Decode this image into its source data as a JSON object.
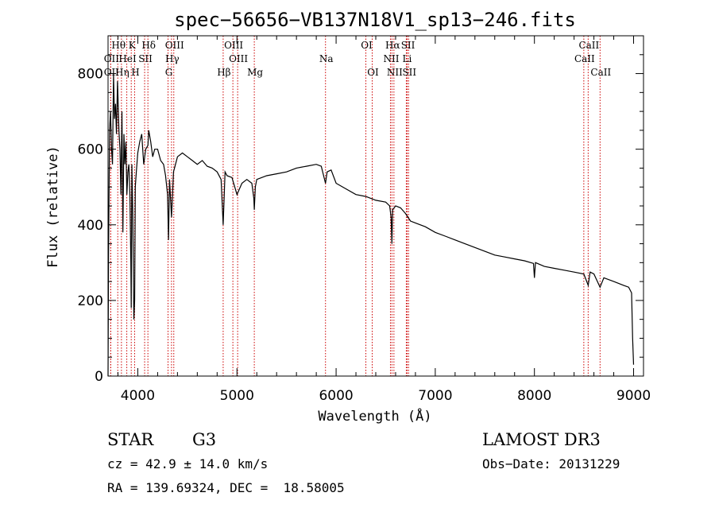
{
  "chart_data": {
    "type": "line",
    "title": "spec−56656−VB137N18V1_sp13−246.fits",
    "xlabel": "Wavelength (Å)",
    "ylabel": "Flux (relative)",
    "xlim": [
      3700,
      9100
    ],
    "ylim": [
      0,
      900
    ],
    "x_ticks": [
      4000,
      5000,
      6000,
      7000,
      8000,
      9000
    ],
    "y_ticks": [
      0,
      200,
      400,
      600,
      800
    ],
    "lines": [
      {
        "label": "Hθ",
        "wave": 3798,
        "row": 0
      },
      {
        "label": "K",
        "wave": 3934,
        "row": 0
      },
      {
        "label": "Hδ",
        "wave": 4102,
        "row": 0
      },
      {
        "label": "OIII",
        "wave": 4363,
        "row": 0
      },
      {
        "label": "OIII",
        "wave": 4959,
        "row": 0
      },
      {
        "label": "OI",
        "wave": 6300,
        "row": 0
      },
      {
        "label": "Hα",
        "wave": 6563,
        "row": 0
      },
      {
        "label": "SII",
        "wave": 6717,
        "row": 0
      },
      {
        "label": "CaII",
        "wave": 8542,
        "row": 0
      },
      {
        "label": "OII",
        "wave": 3727,
        "row": 1
      },
      {
        "label": "HeI",
        "wave": 3889,
        "row": 1
      },
      {
        "label": "SII",
        "wave": 4069,
        "row": 1
      },
      {
        "label": "Hγ",
        "wave": 4340,
        "row": 1
      },
      {
        "label": "OIII",
        "wave": 5007,
        "row": 1
      },
      {
        "label": "Na",
        "wave": 5893,
        "row": 1
      },
      {
        "label": "NII",
        "wave": 6548,
        "row": 1
      },
      {
        "label": "Li",
        "wave": 6708,
        "row": 1
      },
      {
        "label": "CaII",
        "wave": 8498,
        "row": 1
      },
      {
        "label": "OII",
        "wave": 3727,
        "row": 2
      },
      {
        "label": "Hη",
        "wave": 3835,
        "row": 2
      },
      {
        "label": "H",
        "wave": 3968,
        "row": 2
      },
      {
        "label": "G",
        "wave": 4305,
        "row": 2
      },
      {
        "label": "Hβ",
        "wave": 4861,
        "row": 2
      },
      {
        "label": "Mg",
        "wave": 5175,
        "row": 2
      },
      {
        "label": "OI",
        "wave": 6364,
        "row": 2
      },
      {
        "label": "NII",
        "wave": 6583,
        "row": 2
      },
      {
        "label": "SII",
        "wave": 6731,
        "row": 2
      },
      {
        "label": "CaII",
        "wave": 8662,
        "row": 2
      }
    ],
    "series": [
      {
        "name": "flux",
        "x": [
          3700,
          3705,
          3715,
          3725,
          3735,
          3745,
          3755,
          3765,
          3775,
          3785,
          3795,
          3800,
          3810,
          3820,
          3830,
          3840,
          3850,
          3860,
          3870,
          3880,
          3890,
          3900,
          3910,
          3920,
          3930,
          3934,
          3940,
          3950,
          3960,
          3968,
          3975,
          3985,
          4000,
          4020,
          4040,
          4060,
          4080,
          4102,
          4110,
          4130,
          4150,
          4170,
          4200,
          4230,
          4260,
          4280,
          4300,
          4310,
          4320,
          4340,
          4360,
          4380,
          4400,
          4450,
          4500,
          4550,
          4600,
          4650,
          4700,
          4750,
          4800,
          4840,
          4861,
          4880,
          4900,
          4950,
          5000,
          5050,
          5100,
          5150,
          5170,
          5175,
          5185,
          5200,
          5300,
          5400,
          5500,
          5600,
          5700,
          5800,
          5850,
          5893,
          5910,
          5950,
          6000,
          6100,
          6200,
          6300,
          6400,
          6500,
          6540,
          6555,
          6563,
          6570,
          6600,
          6650,
          6700,
          6750,
          6800,
          6900,
          7000,
          7100,
          7200,
          7300,
          7400,
          7500,
          7600,
          7700,
          7800,
          7900,
          7990,
          8000,
          8010,
          8100,
          8200,
          8300,
          8400,
          8498,
          8542,
          8562,
          8600,
          8662,
          8700,
          8800,
          8900,
          8950,
          8980,
          8990,
          9000
        ],
        "y": [
          0,
          320,
          650,
          700,
          600,
          560,
          800,
          680,
          720,
          640,
          780,
          740,
          650,
          600,
          480,
          700,
          380,
          640,
          560,
          620,
          480,
          540,
          560,
          480,
          300,
          180,
          560,
          420,
          150,
          200,
          500,
          540,
          590,
          620,
          640,
          560,
          600,
          610,
          650,
          620,
          580,
          600,
          600,
          570,
          560,
          530,
          480,
          360,
          520,
          420,
          540,
          560,
          580,
          590,
          580,
          570,
          560,
          570,
          555,
          550,
          540,
          520,
          400,
          540,
          530,
          525,
          480,
          510,
          520,
          510,
          470,
          440,
          500,
          520,
          530,
          535,
          540,
          550,
          555,
          560,
          555,
          510,
          540,
          545,
          510,
          495,
          480,
          475,
          465,
          460,
          450,
          420,
          350,
          440,
          450,
          445,
          430,
          410,
          405,
          395,
          380,
          370,
          360,
          350,
          340,
          330,
          320,
          315,
          310,
          305,
          298,
          260,
          300,
          290,
          285,
          280,
          275,
          270,
          240,
          275,
          270,
          235,
          260,
          250,
          240,
          235,
          220,
          100,
          30
        ]
      }
    ]
  },
  "footer": {
    "object_class": "STAR",
    "subclass": "G3",
    "survey": "LAMOST DR3",
    "cz": "cz = 42.9 ± 14.0 km/s",
    "obs_date": "Obs−Date: 20131229",
    "coords": "RA = 139.69324, DEC =  18.58005"
  }
}
